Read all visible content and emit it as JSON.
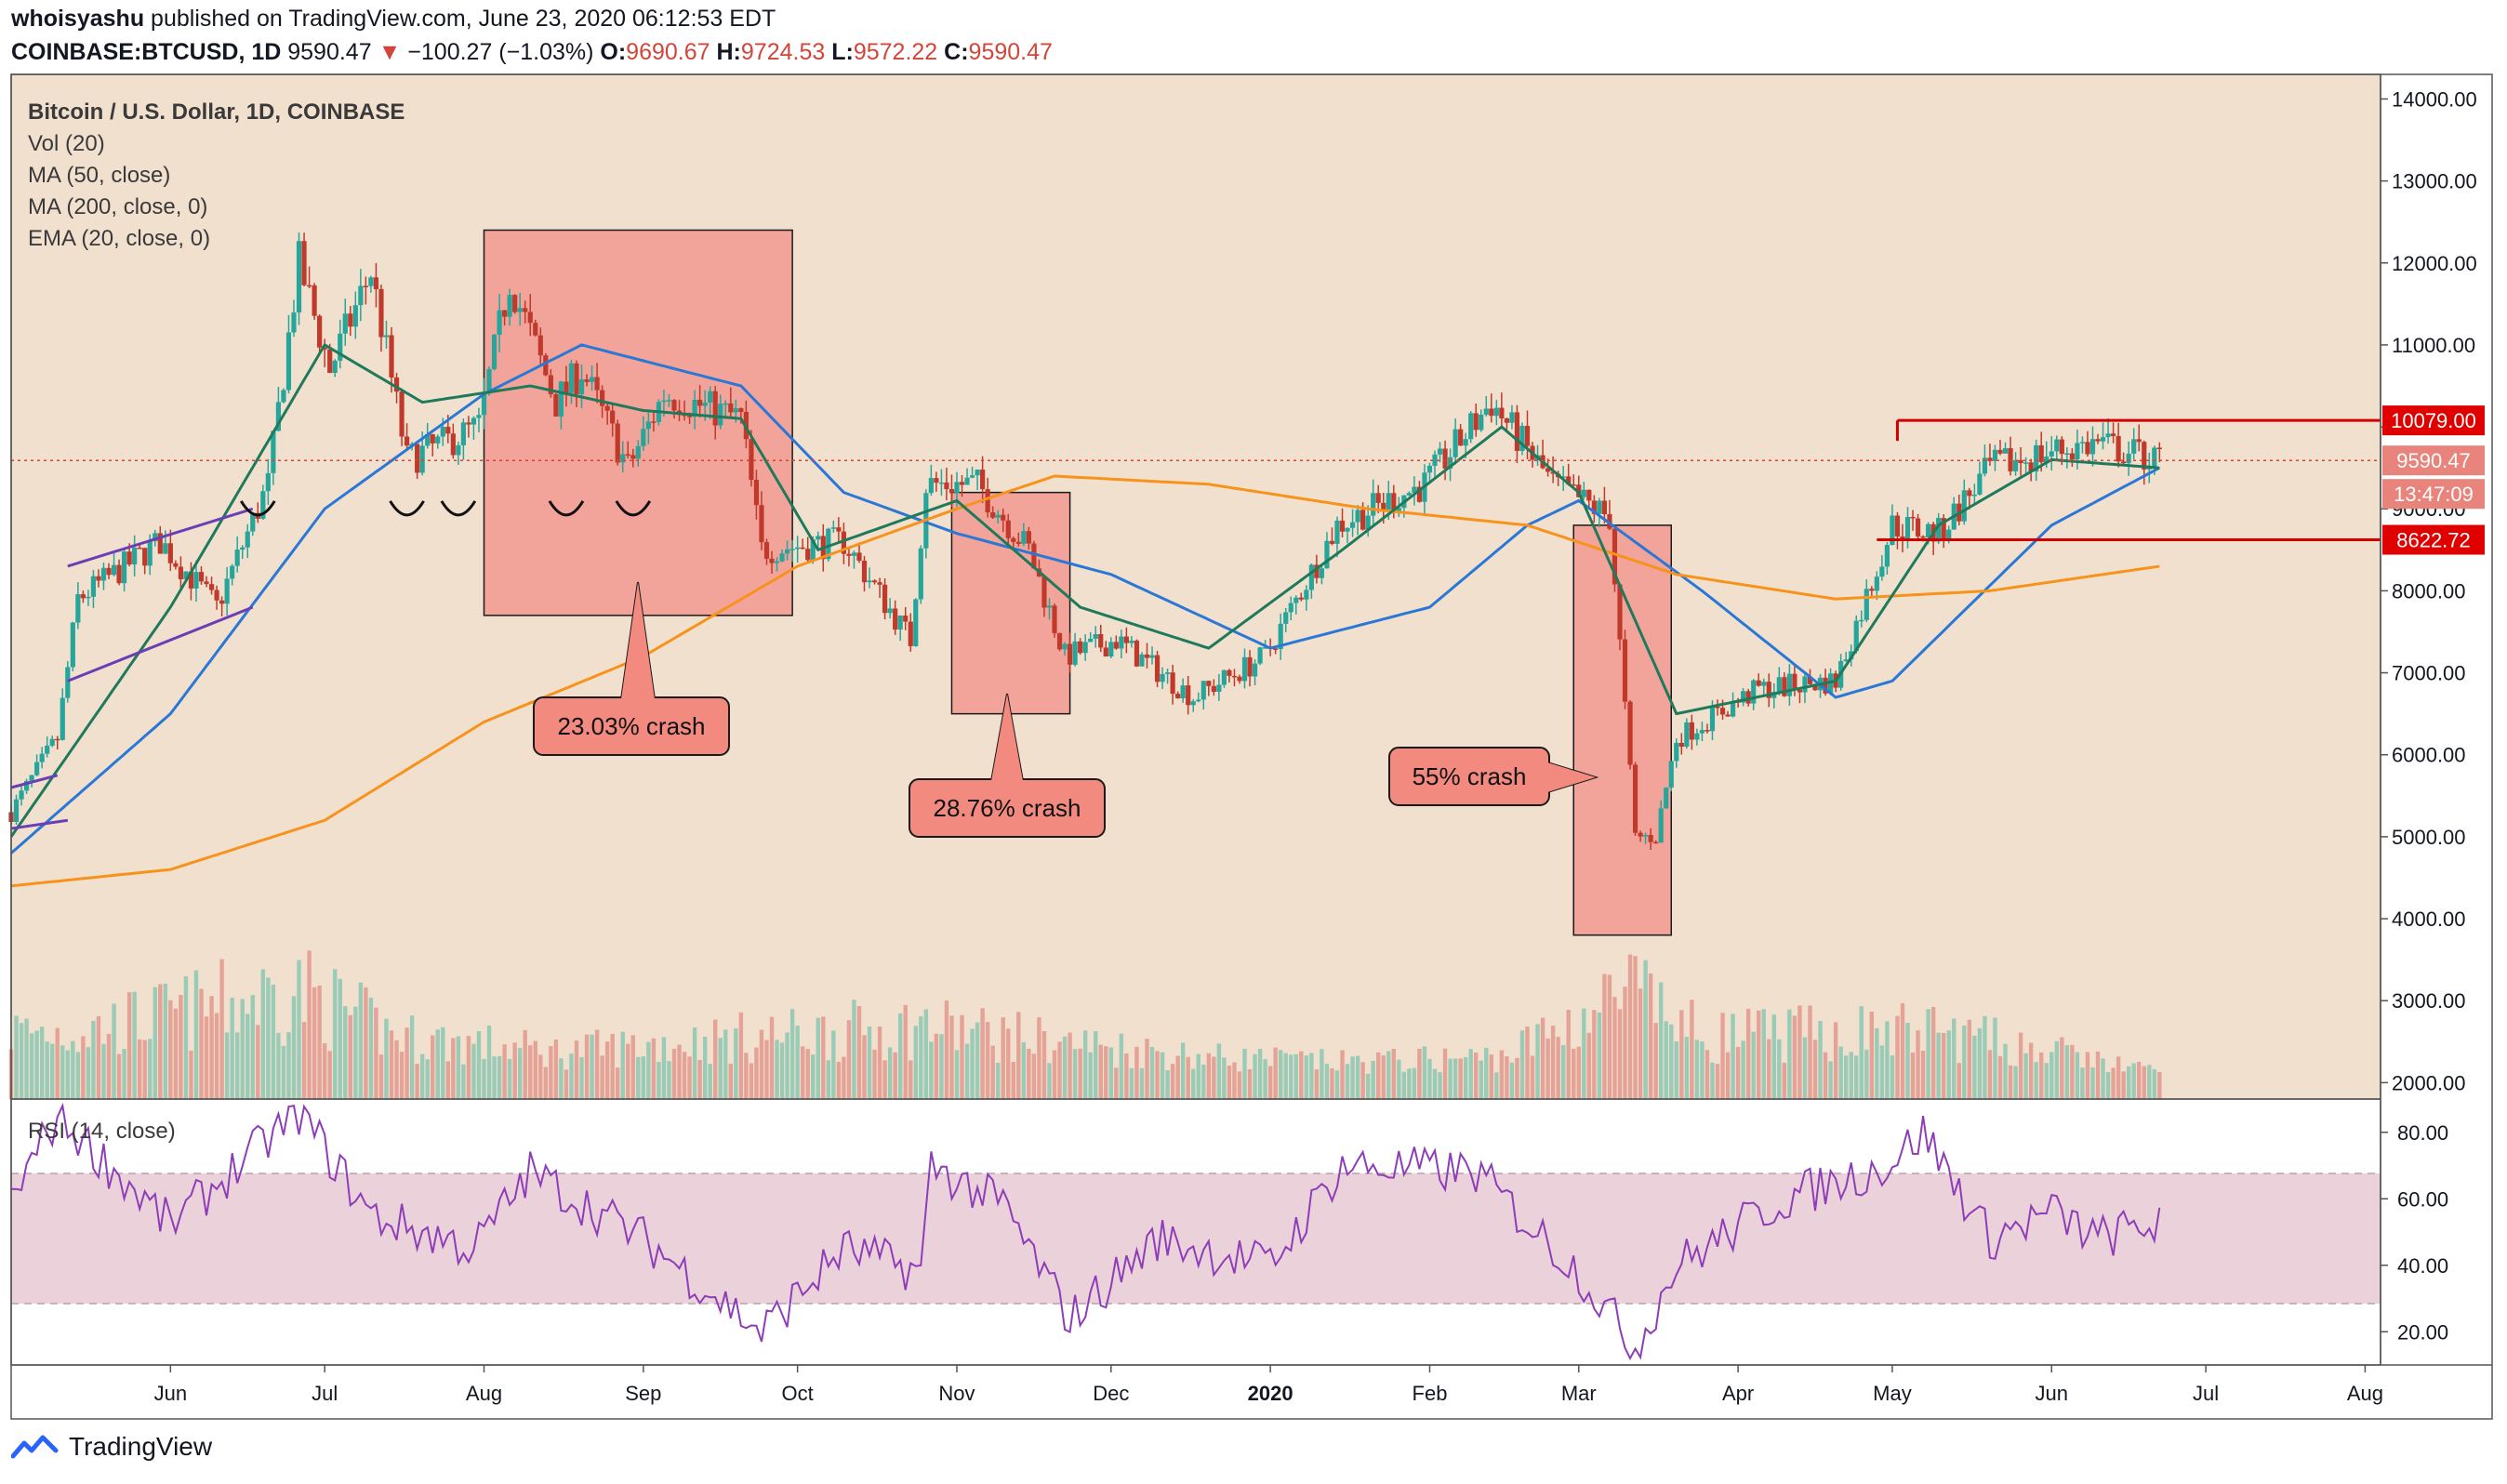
{
  "header": {
    "author": "whoisyashu",
    "published_text": "published on TradingView.com, June 23, 2020 06:12:53 EDT",
    "symbol": "COINBASE:BTCUSD, 1D",
    "last": "9590.47",
    "change": "−100.27 (−1.03%)",
    "o_label": "O:",
    "o": "9690.67",
    "h_label": "H:",
    "h": "9724.53",
    "l_label": "L:",
    "l": "9572.22",
    "c_label": "C:",
    "c": "9590.47"
  },
  "legend": [
    "Bitcoin / U.S. Dollar, 1D, COINBASE",
    "Vol (20)",
    "MA (50, close)",
    "MA (200, close, 0)",
    "EMA (20, close, 0)"
  ],
  "rsi_label": "RSI (14, close)",
  "annotations": {
    "crash1": "23.03% crash",
    "crash2": "28.76% crash",
    "crash3": "55% crash"
  },
  "price_badges": {
    "resistance": "10079.00",
    "last": "9590.47",
    "countdown": "13:47:09",
    "support": "8622.72"
  },
  "footer": {
    "brand": "TradingView"
  },
  "colors": {
    "background": "#f2e0cf",
    "up": "#26a69a",
    "down": "#c0392b",
    "ema20": "#1e7a5a",
    "ma50": "#2a78d6",
    "ma200": "#f7931a",
    "rsi": "#8e3db8",
    "crash_box": "#f2a49a",
    "lines": "#d40000"
  },
  "chart_data": [
    {
      "type": "line",
      "title": "Bitcoin / U.S. Dollar, 1D, COINBASE",
      "ylim": [
        1800,
        14300
      ],
      "y_ticks": [
        2000,
        3000,
        4000,
        5000,
        6000,
        7000,
        8000,
        9000,
        10000,
        11000,
        12000,
        13000,
        14000
      ],
      "y_tick_labels": [
        "2000.00",
        "3000.00",
        "4000.00",
        "5000.00",
        "6000.00",
        "7000.00",
        "8000.00",
        "9000.00",
        "10000.00",
        "11000.00",
        "12000.00",
        "13000.00",
        "14000.00"
      ],
      "x_tick_labels": [
        "Jun",
        "Jul",
        "Aug",
        "Sep",
        "Oct",
        "Nov",
        "Dec",
        "2020",
        "Feb",
        "Mar",
        "Apr",
        "May",
        "Jun",
        "Jul",
        "Aug"
      ],
      "x_tick_dates": [
        "2019-06-01",
        "2019-07-01",
        "2019-08-01",
        "2019-09-01",
        "2019-10-01",
        "2019-11-01",
        "2019-12-01",
        "2020-01-01",
        "2020-02-01",
        "2020-03-01",
        "2020-04-01",
        "2020-05-01",
        "2020-06-01",
        "2020-07-01",
        "2020-08-01"
      ],
      "xlim": [
        "2019-05-01",
        "2020-08-04"
      ],
      "series": [
        {
          "name": "Bitcoin / U.S. Dollar, 1D, COINBASE",
          "x": [
            "2019-05-01",
            "2019-05-10",
            "2019-05-14",
            "2019-05-30",
            "2019-06-10",
            "2019-06-20",
            "2019-06-26",
            "2019-07-02",
            "2019-07-10",
            "2019-07-17",
            "2019-07-31",
            "2019-08-06",
            "2019-08-15",
            "2019-08-20",
            "2019-08-29",
            "2019-09-05",
            "2019-09-20",
            "2019-09-24",
            "2019-10-10",
            "2019-10-23",
            "2019-10-26",
            "2019-11-05",
            "2019-11-15",
            "2019-11-22",
            "2019-12-02",
            "2019-12-17",
            "2019-12-31",
            "2020-01-14",
            "2020-01-31",
            "2020-02-13",
            "2020-02-25",
            "2020-03-07",
            "2020-03-12",
            "2020-03-16",
            "2020-03-20",
            "2020-04-05",
            "2020-04-20",
            "2020-05-01",
            "2020-05-10",
            "2020-05-20",
            "2020-06-01",
            "2020-06-10",
            "2020-06-22"
          ],
          "values": [
            5300,
            6200,
            7900,
            8600,
            7800,
            9300,
            12000,
            10700,
            11900,
            9600,
            10000,
            11800,
            10300,
            10700,
            9500,
            10400,
            10100,
            8500,
            8600,
            7400,
            9300,
            9300,
            8500,
            7200,
            7400,
            6700,
            7200,
            8800,
            9300,
            10300,
            9300,
            8900,
            5000,
            5000,
            6200,
            6800,
            6900,
            8800,
            8700,
            9500,
            9700,
            9800,
            9590
          ]
        },
        {
          "name": "MA (50, close)",
          "x": [
            "2019-05-01",
            "2019-06-01",
            "2019-07-01",
            "2019-08-01",
            "2019-08-20",
            "2019-09-20",
            "2019-10-10",
            "2019-11-01",
            "2019-12-01",
            "2020-01-01",
            "2020-02-01",
            "2020-02-20",
            "2020-03-01",
            "2020-03-25",
            "2020-04-20",
            "2020-05-01",
            "2020-06-01",
            "2020-06-22"
          ],
          "values": [
            4800,
            6500,
            9000,
            10400,
            11000,
            10500,
            9200,
            8700,
            8200,
            7300,
            7800,
            8800,
            9100,
            8000,
            6700,
            6900,
            8800,
            9500
          ]
        },
        {
          "name": "MA (200, close, 0)",
          "x": [
            "2019-05-01",
            "2019-06-01",
            "2019-07-01",
            "2019-08-01",
            "2019-09-01",
            "2019-10-01",
            "2019-11-01",
            "2019-11-20",
            "2019-12-20",
            "2020-01-20",
            "2020-02-20",
            "2020-03-20",
            "2020-04-20",
            "2020-05-20",
            "2020-06-22"
          ],
          "values": [
            4400,
            4600,
            5200,
            6400,
            7200,
            8300,
            9000,
            9400,
            9300,
            9000,
            8800,
            8200,
            7900,
            8000,
            8300
          ]
        },
        {
          "name": "EMA (20, close, 0)",
          "x": [
            "2019-05-01",
            "2019-06-01",
            "2019-07-01",
            "2019-07-20",
            "2019-08-10",
            "2019-09-01",
            "2019-09-20",
            "2019-10-05",
            "2019-11-01",
            "2019-11-25",
            "2019-12-20",
            "2020-01-15",
            "2020-02-15",
            "2020-03-01",
            "2020-03-20",
            "2020-04-20",
            "2020-05-10",
            "2020-06-01",
            "2020-06-22"
          ],
          "values": [
            5000,
            7800,
            11000,
            10300,
            10500,
            10200,
            10100,
            8500,
            9100,
            7800,
            7300,
            8500,
            10000,
            9200,
            6500,
            6900,
            8800,
            9600,
            9500
          ]
        }
      ],
      "horizontal_lines": [
        {
          "label": "10079.00",
          "value": 10079
        },
        {
          "label": "8622.72",
          "value": 8622.72
        },
        {
          "label": "9590.47",
          "value": 9590.47
        }
      ],
      "regions": [
        {
          "label": "23.03% crash",
          "x": [
            "2019-08-01",
            "2019-09-30"
          ],
          "y": [
            7700,
            12400
          ]
        },
        {
          "label": "28.76% crash",
          "x": [
            "2019-10-31",
            "2019-11-23"
          ],
          "y": [
            6500,
            9200
          ]
        },
        {
          "label": "55% crash",
          "x": [
            "2020-02-29",
            "2020-03-19"
          ],
          "y": [
            3800,
            8800
          ]
        }
      ],
      "volume": {
        "name": "Vol (20)",
        "x": [
          "2019-05-15",
          "2019-06-26",
          "2019-07-15",
          "2019-08-15",
          "2019-09-24",
          "2019-10-26",
          "2019-11-20",
          "2019-12-20",
          "2020-01-15",
          "2020-02-15",
          "2020-03-12",
          "2020-03-13",
          "2020-03-25",
          "2020-04-30",
          "2020-05-10",
          "2020-06-01",
          "2020-06-22"
        ],
        "values": [
          3000,
          3800,
          2900,
          2600,
          2900,
          3100,
          2800,
          2500,
          2400,
          2500,
          3800,
          3600,
          2900,
          3000,
          3000,
          2600,
          2200
        ]
      }
    },
    {
      "type": "line",
      "title": "RSI (14, close)",
      "ylim": [
        10,
        90
      ],
      "y_ticks": [
        20,
        40,
        60,
        80
      ],
      "y_tick_labels": [
        "20.00",
        "40.00",
        "60.00",
        "80.00"
      ],
      "band": [
        30,
        70
      ],
      "series": [
        {
          "name": "RSI (14, close)",
          "x": [
            "2019-05-01",
            "2019-05-10",
            "2019-06-01",
            "2019-06-26",
            "2019-07-10",
            "2019-07-30",
            "2019-08-10",
            "2019-09-01",
            "2019-09-24",
            "2019-10-10",
            "2019-10-25",
            "2019-10-27",
            "2019-11-10",
            "2019-11-23",
            "2019-12-10",
            "2020-01-01",
            "2020-01-15",
            "2020-02-10",
            "2020-03-01",
            "2020-03-12",
            "2020-03-20",
            "2020-04-10",
            "2020-04-30",
            "2020-05-07",
            "2020-05-20",
            "2020-06-01",
            "2020-06-10",
            "2020-06-22"
          ],
          "values": [
            60,
            85,
            52,
            86,
            55,
            45,
            68,
            48,
            20,
            45,
            38,
            70,
            58,
            24,
            48,
            40,
            70,
            68,
            38,
            15,
            40,
            60,
            70,
            80,
            48,
            56,
            48,
            53
          ]
        }
      ]
    }
  ]
}
